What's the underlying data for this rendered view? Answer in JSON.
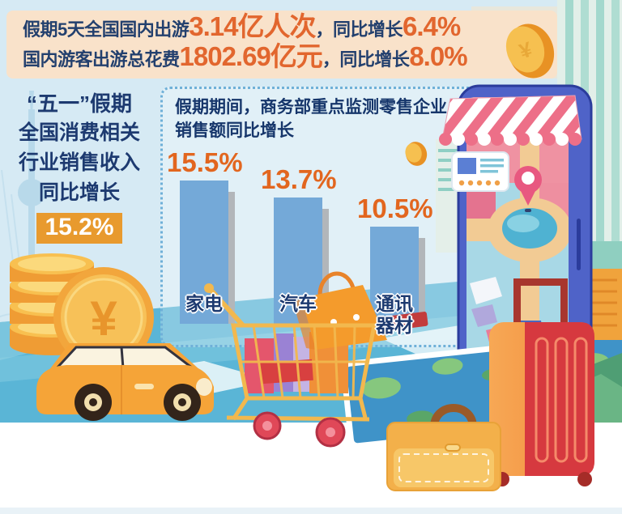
{
  "header": {
    "line1": {
      "prefix": "假期5天全国国内出游",
      "value1": "3.14亿人次",
      "mid": "，同比增长",
      "value2": "6.4%"
    },
    "line2": {
      "prefix": "国内游客出游总花费",
      "value1": "1802.69亿元",
      "mid": "，同比增长",
      "value2": "8.0%"
    }
  },
  "left_panel": {
    "lines": [
      "“五一”假期",
      "全国消费相关",
      "行业销售收入",
      "同比增长"
    ],
    "highlight_value": "15.2%"
  },
  "chart_panel": {
    "title_lines": [
      "假期期间，商务部重点监测零售企业",
      "销售额同比增长"
    ]
  },
  "chart_data": {
    "type": "bar",
    "title": "假期期间，商务部重点监测零售企业销售额同比增长",
    "categories": [
      "家电",
      "汽车",
      "通讯器材"
    ],
    "values": [
      15.5,
      13.7,
      10.5
    ],
    "value_labels": [
      "15.5%",
      "13.7%",
      "10.5%"
    ],
    "unit": "%",
    "xlabel": "",
    "ylabel": "同比增长",
    "ylim": [
      0,
      17.5
    ],
    "grid": false,
    "legend": false
  },
  "icons": {
    "yen_symbol": "¥"
  },
  "colors": {
    "accent_orange": "#e2662e",
    "navy": "#1d3a70",
    "bar_blue": "#74a9d8",
    "bar_shadow": "#b2b6ba",
    "highlight_box_orange": "#e89a2e",
    "header_band_peach": "#f9e2ca",
    "background_blue": "#d6eaf4",
    "road_teal": "#5ab5d6",
    "coin_gold": "#f2a63c"
  }
}
